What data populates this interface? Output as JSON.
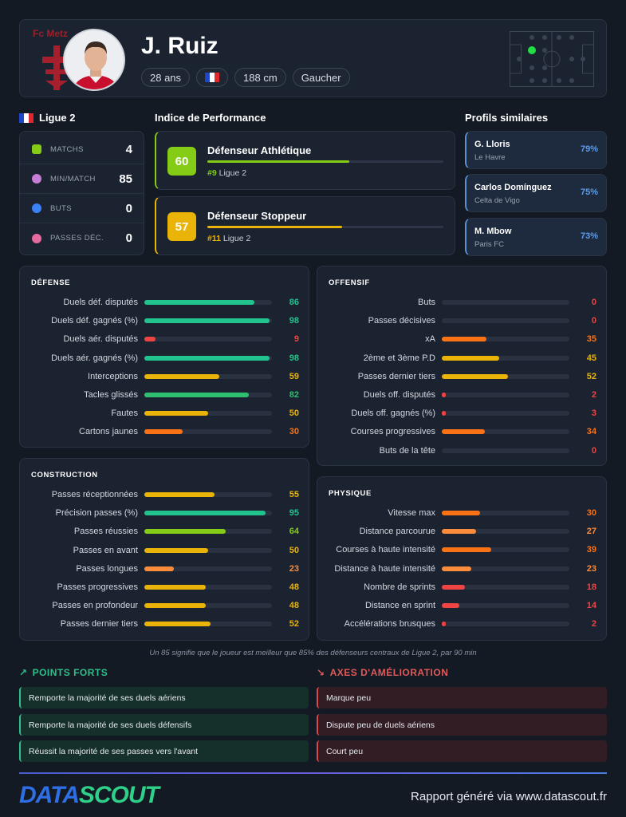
{
  "colors": {
    "green": "#2fbf71",
    "teal": "#20c48c",
    "lime": "#84cc16",
    "yellow": "#eab308",
    "orange": "#f97316",
    "orange_light": "#fb8c3c",
    "red": "#ef4444",
    "track": "#2a3242"
  },
  "header": {
    "club_name": "Fc Metz",
    "player_name": "J. Ruiz",
    "age": "28 ans",
    "nationality_flag": "flag-france",
    "height": "188 cm",
    "foot": "Gaucher"
  },
  "league": {
    "label": "Ligue 2",
    "flag": "flag-france"
  },
  "stats": [
    {
      "label": "MATCHS",
      "value": "4",
      "icon": "boot-icon",
      "color": "#84cc16"
    },
    {
      "label": "MIN/MATCH",
      "value": "85",
      "icon": "clock-icon",
      "color": "#c77dd6"
    },
    {
      "label": "BUTS",
      "value": "0",
      "icon": "ball-icon",
      "color": "#3b82f6"
    },
    {
      "label": "PASSES DÉC.",
      "value": "0",
      "icon": "target-icon",
      "color": "#e46aa0"
    }
  ],
  "performance": {
    "title": "Indice de Performance",
    "items": [
      {
        "score": "60",
        "title": "Défenseur Athlétique",
        "rank": "#9",
        "rank_suffix": " Ligue 2",
        "fill": 0.6,
        "color": "#84cc16"
      },
      {
        "score": "57",
        "title": "Défenseur Stoppeur",
        "rank": "#11",
        "rank_suffix": " Ligue 2",
        "fill": 0.57,
        "color": "#eab308"
      }
    ]
  },
  "similar": {
    "title": "Profils similaires",
    "items": [
      {
        "name": "G. Lloris",
        "club": "Le Havre",
        "pct": "79%"
      },
      {
        "name": "Carlos Domínguez",
        "club": "Celta de Vigo",
        "pct": "75%"
      },
      {
        "name": "M. Mbow",
        "club": "Paris FC",
        "pct": "73%"
      }
    ]
  },
  "panels": {
    "defense": {
      "title": "DÉFENSE",
      "metrics": [
        {
          "label": "Duels déf. disputés",
          "value": 86
        },
        {
          "label": "Duels déf. gagnés (%)",
          "value": 98
        },
        {
          "label": "Duels aér. disputés",
          "value": 9
        },
        {
          "label": "Duels aér. gagnés (%)",
          "value": 98
        },
        {
          "label": "Interceptions",
          "value": 59
        },
        {
          "label": "Tacles glissés",
          "value": 82
        },
        {
          "label": "Fautes",
          "value": 50
        },
        {
          "label": "Cartons jaunes",
          "value": 30
        }
      ]
    },
    "offensif": {
      "title": "OFFENSIF",
      "metrics": [
        {
          "label": "Buts",
          "value": 0
        },
        {
          "label": "Passes décisives",
          "value": 0
        },
        {
          "label": "xA",
          "value": 35
        },
        {
          "label": "2ème et 3ème P.D",
          "value": 45
        },
        {
          "label": "Passes dernier tiers",
          "value": 52
        },
        {
          "label": "Duels off. disputés",
          "value": 2
        },
        {
          "label": "Duels off. gagnés (%)",
          "value": 3
        },
        {
          "label": "Courses progressives",
          "value": 34
        },
        {
          "label": "Buts de la tête",
          "value": 0
        }
      ]
    },
    "construction": {
      "title": "CONSTRUCTION",
      "metrics": [
        {
          "label": "Passes réceptionnées",
          "value": 55
        },
        {
          "label": "Précision passes (%)",
          "value": 95
        },
        {
          "label": "Passes réussies",
          "value": 64
        },
        {
          "label": "Passes en avant",
          "value": 50
        },
        {
          "label": "Passes longues",
          "value": 23
        },
        {
          "label": "Passes progressives",
          "value": 48
        },
        {
          "label": "Passes en profondeur",
          "value": 48
        },
        {
          "label": "Passes dernier tiers",
          "value": 52
        }
      ]
    },
    "physique": {
      "title": "PHYSIQUE",
      "metrics": [
        {
          "label": "Vitesse max",
          "value": 30
        },
        {
          "label": "Distance parcourue",
          "value": 27
        },
        {
          "label": "Courses à haute intensité",
          "value": 39
        },
        {
          "label": "Distance à haute intensité",
          "value": 23
        },
        {
          "label": "Nombre de sprints",
          "value": 18
        },
        {
          "label": "Distance en sprint",
          "value": 14
        },
        {
          "label": "Accélérations brusques",
          "value": 2
        }
      ]
    }
  },
  "footnote": "Un 85 signifie que le joueur est meilleur que 85% des défenseurs centraux de Ligue 2, par 90 min",
  "strengths": {
    "title": "POINTS FORTS",
    "icon": "trend-up-icon",
    "items": [
      "Remporte la majorité de ses duels aériens",
      "Remporte la majorité de ses duels défensifs",
      "Réussit la majorité de ses passes vers l'avant"
    ]
  },
  "weaknesses": {
    "title": "AXES D'AMÉLIORATION",
    "icon": "trend-down-icon",
    "items": [
      "Marque peu",
      "Dispute peu de duels aériens",
      "Court peu"
    ]
  },
  "footer": {
    "brand_a": "DATA",
    "brand_b": "SCOUT",
    "text": "Rapport généré via www.datascout.fr"
  }
}
